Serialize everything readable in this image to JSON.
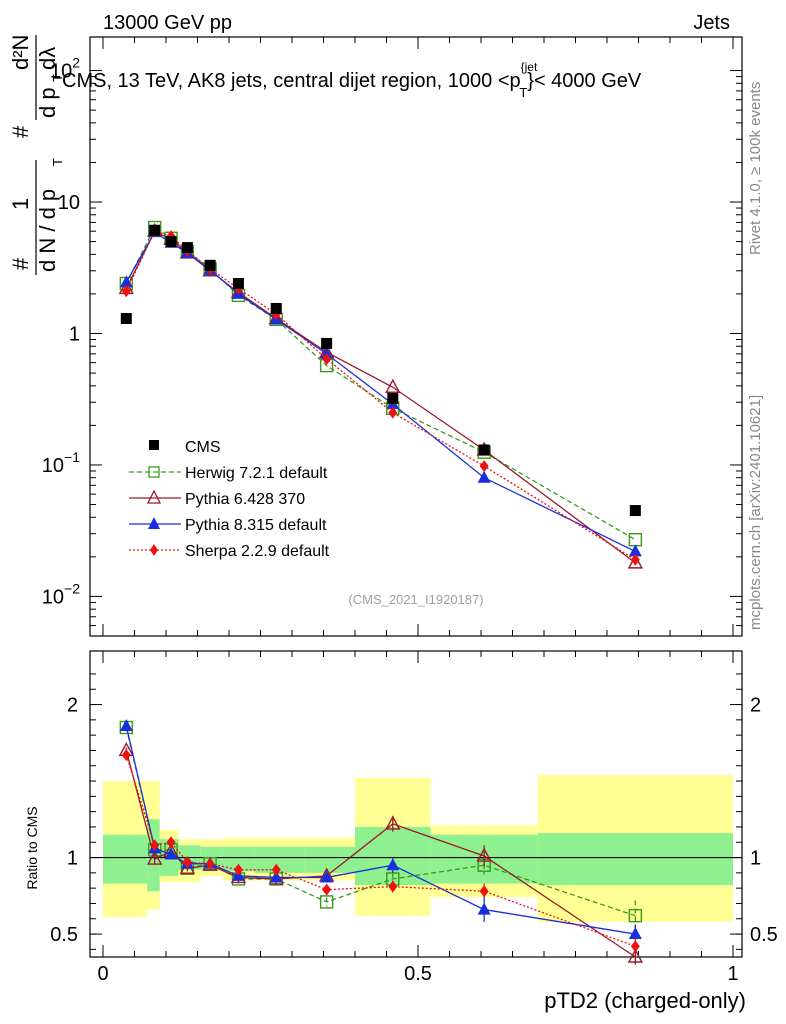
{
  "header": {
    "left": "13000 GeV pp",
    "right": "Jets",
    "title": "CMS, 13 TeV, AK8 jets, central dijet region, 1000 <p",
    "title_sup": "{jet",
    "title_sub": "T",
    "title_end": "}< 4000 GeV",
    "side_top": "Rivet 4.1.0, ≥ 100k events",
    "side_bottom": "mcplots.cern.ch [arXiv:2401.10621]",
    "analysis_id": "(CMS_2021_I1920187)"
  },
  "chart_data": {
    "type": "line",
    "xlabel": "pTD2 (charged-only)",
    "xlim": [
      0,
      1
    ],
    "x_ticks": [
      "0",
      "0.5",
      "1"
    ],
    "main": {
      "yscale": "log",
      "ylim": [
        0.005,
        180
      ],
      "ylabel_parts": [
        "#",
        "1",
        "d N / d p",
        "T",
        "#",
        "d²N",
        "d p",
        "T",
        "dλ"
      ],
      "y_ticks": [
        {
          "base": "10",
          "exp": "−2",
          "value": 0.01
        },
        {
          "base": "10",
          "exp": "−1",
          "value": 0.1
        },
        {
          "base": "1",
          "exp": "",
          "value": 1
        },
        {
          "base": "10",
          "exp": "",
          "value": 10
        },
        {
          "base": "10",
          "exp": "2",
          "value": 100
        }
      ]
    },
    "ratio": {
      "ylabel": "Ratio to CMS",
      "ylim": [
        0.35,
        2.35
      ],
      "y_ticks": [
        "0.5",
        "1",
        "2"
      ],
      "y_tick_values": [
        0.5,
        1,
        2
      ],
      "bands": [
        {
          "x0": 0.0,
          "x1": 0.07,
          "g": [
            0.83,
            1.15
          ],
          "y": [
            0.61,
            1.5
          ]
        },
        {
          "x0": 0.07,
          "x1": 0.09,
          "g": [
            0.78,
            1.25
          ],
          "y": [
            0.66,
            1.5
          ]
        },
        {
          "x0": 0.09,
          "x1": 0.12,
          "g": [
            0.88,
            1.12
          ],
          "y": [
            0.84,
            1.18
          ]
        },
        {
          "x0": 0.12,
          "x1": 0.155,
          "g": [
            0.92,
            1.08
          ],
          "y": [
            0.84,
            1.12
          ]
        },
        {
          "x0": 0.155,
          "x1": 0.19,
          "g": [
            0.92,
            1.07
          ],
          "y": [
            0.88,
            1.12
          ]
        },
        {
          "x0": 0.19,
          "x1": 0.24,
          "g": [
            0.91,
            1.07
          ],
          "y": [
            0.85,
            1.13
          ]
        },
        {
          "x0": 0.24,
          "x1": 0.32,
          "g": [
            0.9,
            1.07
          ],
          "y": [
            0.85,
            1.13
          ]
        },
        {
          "x0": 0.32,
          "x1": 0.4,
          "g": [
            0.9,
            1.07
          ],
          "y": [
            0.85,
            1.13
          ]
        },
        {
          "x0": 0.4,
          "x1": 0.52,
          "g": [
            0.82,
            1.2
          ],
          "y": [
            0.62,
            1.52
          ]
        },
        {
          "x0": 0.52,
          "x1": 0.69,
          "g": [
            0.83,
            1.15
          ],
          "y": [
            0.74,
            1.21
          ]
        },
        {
          "x0": 0.69,
          "x1": 1.0,
          "g": [
            0.82,
            1.16
          ],
          "y": [
            0.58,
            1.54
          ]
        }
      ]
    },
    "x": [
      0.037,
      0.082,
      0.108,
      0.134,
      0.17,
      0.215,
      0.275,
      0.355,
      0.46,
      0.605,
      0.845
    ],
    "series": [
      {
        "name": "CMS",
        "style": "data",
        "color": "#000000",
        "values": [
          1.3,
          6.1,
          5.0,
          4.5,
          3.3,
          2.4,
          1.55,
          0.84,
          0.32,
          0.13,
          0.045
        ],
        "ratio": [
          1,
          1,
          1,
          1,
          1,
          1,
          1,
          1,
          1,
          1,
          1
        ]
      },
      {
        "name": "Herwig 7.2.1 default",
        "style": "dashed",
        "marker": "open-square",
        "color": "#3a9a1c",
        "values": [
          2.4,
          6.4,
          5.3,
          4.2,
          3.1,
          1.95,
          1.28,
          0.57,
          0.27,
          0.125,
          0.027
        ],
        "ratio": [
          1.85,
          1.05,
          1.05,
          0.93,
          0.96,
          0.86,
          0.86,
          0.71,
          0.86,
          0.95,
          0.62
        ],
        "ratio_err": [
          0.02,
          0.03,
          0.03,
          0.02,
          0.02,
          0.03,
          0.03,
          0.03,
          0.04,
          0.06,
          0.1
        ]
      },
      {
        "name": "Pythia 6.428 370",
        "style": "solid",
        "marker": "open-triangle",
        "color": "#9a1a2a",
        "values": [
          2.2,
          6.0,
          5.2,
          4.1,
          3.0,
          2.05,
          1.3,
          0.72,
          0.39,
          0.13,
          0.018
        ],
        "ratio": [
          1.7,
          0.99,
          1.04,
          0.93,
          0.95,
          0.87,
          0.86,
          0.88,
          1.22,
          1.01,
          0.35
        ],
        "ratio_err": [
          0.02,
          0.03,
          0.03,
          0.02,
          0.02,
          0.03,
          0.03,
          0.03,
          0.05,
          0.07,
          0.05
        ]
      },
      {
        "name": "Pythia 8.315 default",
        "style": "solid",
        "marker": "filled-triangle",
        "color": "#1a2fdc",
        "values": [
          2.45,
          5.9,
          4.9,
          4.1,
          3.05,
          2.0,
          1.28,
          0.7,
          0.29,
          0.08,
          0.022
        ],
        "ratio": [
          1.86,
          1.06,
          1.02,
          0.96,
          0.96,
          0.88,
          0.87,
          0.87,
          0.95,
          0.66,
          0.5
        ],
        "ratio_err": [
          0.02,
          0.03,
          0.03,
          0.02,
          0.02,
          0.03,
          0.03,
          0.03,
          0.05,
          0.08,
          0.06
        ]
      },
      {
        "name": "Sherpa 2.2.9 default",
        "style": "dotted",
        "marker": "filled-diamond",
        "color": "#ee1111",
        "values": [
          2.1,
          6.0,
          5.5,
          4.25,
          3.1,
          2.2,
          1.4,
          0.64,
          0.25,
          0.098,
          0.019
        ],
        "ratio": [
          1.67,
          1.08,
          1.1,
          0.97,
          0.96,
          0.92,
          0.92,
          0.79,
          0.81,
          0.78,
          0.42
        ],
        "ratio_err": [
          0.02,
          0.03,
          0.03,
          0.02,
          0.02,
          0.03,
          0.03,
          0.03,
          0.04,
          0.05,
          0.05
        ]
      }
    ]
  }
}
